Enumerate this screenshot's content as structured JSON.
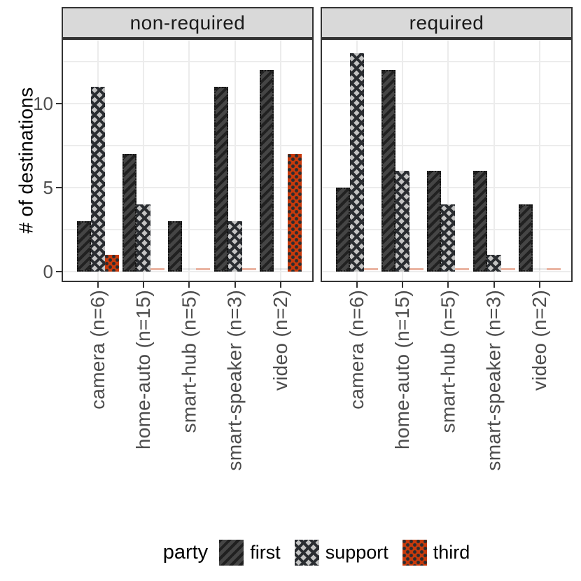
{
  "chart_data": {
    "type": "bar",
    "title": "",
    "xlabel": "",
    "ylabel": "# of destinations",
    "categories": [
      "camera (n=6)",
      "home-auto (n=15)",
      "smart-hub (n=5)",
      "smart-speaker (n=3)",
      "video (n=2)"
    ],
    "facets": [
      {
        "name": "non-required",
        "series": [
          {
            "name": "first",
            "values": [
              3,
              7,
              3,
              11,
              12
            ]
          },
          {
            "name": "support",
            "values": [
              11,
              4,
              0,
              3,
              0
            ]
          },
          {
            "name": "third",
            "values": [
              1,
              0,
              0,
              0,
              7
            ]
          }
        ]
      },
      {
        "name": "required",
        "series": [
          {
            "name": "first",
            "values": [
              5,
              12,
              6,
              6,
              4
            ]
          },
          {
            "name": "support",
            "values": [
              13,
              6,
              4,
              1,
              0
            ]
          },
          {
            "name": "third",
            "values": [
              0,
              0,
              0,
              0,
              0
            ]
          }
        ]
      }
    ],
    "ylim": [
      0,
      13.8
    ],
    "y_major_ticks": [
      0,
      5,
      10
    ],
    "y_minor_ticks": [
      2.5,
      7.5,
      12.5
    ],
    "y_tick_labels": [
      "0",
      "5",
      "10"
    ],
    "grid": "on",
    "legend": {
      "title": "party",
      "position": "bottom",
      "entries": [
        {
          "key": "first",
          "label": "first",
          "pattern": "diagonal-stripes"
        },
        {
          "key": "support",
          "label": "support",
          "pattern": "crosshatch"
        },
        {
          "key": "third",
          "label": "third",
          "pattern": "dots"
        }
      ]
    },
    "colors": {
      "first": "#454545",
      "support": "#c3c3c3",
      "third": "#c93a0b",
      "pattern_ink": "#2a2d31",
      "strip_bg": "#d9d9d9",
      "panel_border": "#333333",
      "gridline": "#ececec",
      "axis_text": "#4d4d4d",
      "title_text": "#1a1a1a"
    }
  }
}
